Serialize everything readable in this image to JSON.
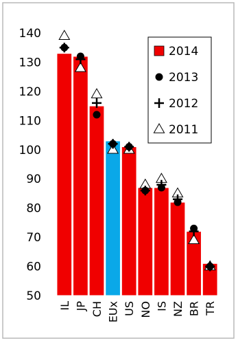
{
  "chart_data": {
    "type": "bar",
    "categories": [
      "IL",
      "JP",
      "CH",
      "EUx",
      "US",
      "NO",
      "IS",
      "NZ",
      "BR",
      "TR"
    ],
    "ylim": [
      50,
      140
    ],
    "yticks": [
      50,
      60,
      70,
      80,
      90,
      100,
      110,
      120,
      130,
      140
    ],
    "grid": false,
    "legend_position": "top-right",
    "series": [
      {
        "name": "2014",
        "marker": "bar",
        "values": [
          133,
          132,
          115,
          103,
          101,
          87,
          87,
          82,
          72,
          61
        ]
      },
      {
        "name": "2013",
        "marker": "dot",
        "values": [
          135,
          132,
          112,
          102,
          101,
          86,
          87,
          82,
          73,
          60
        ]
      },
      {
        "name": "2012",
        "marker": "plus",
        "values": [
          135,
          131,
          116,
          102,
          101,
          86,
          88,
          83,
          72,
          60
        ]
      },
      {
        "name": "2011",
        "marker": "triangle",
        "values": [
          139,
          128,
          119,
          100,
          100,
          88,
          90,
          85,
          69,
          60
        ]
      }
    ],
    "colors": {
      "bar": "#f00000",
      "bar_highlight": "#0aa8e8",
      "bar_edge": "#ffffff",
      "frame": "#b8b8b8"
    },
    "highlight_category": "EUx"
  }
}
